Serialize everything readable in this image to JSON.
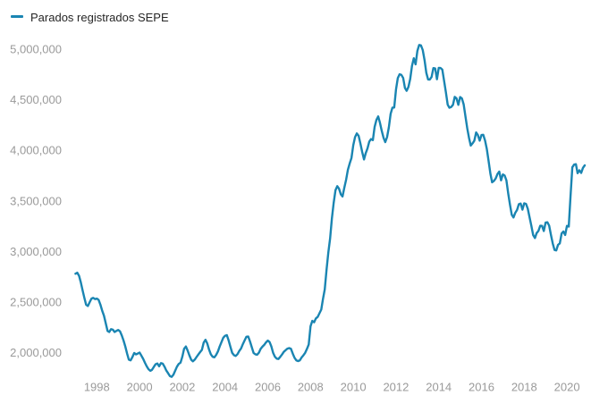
{
  "chart_data": {
    "type": "line",
    "title": "",
    "legend": "Parados registrados SEPE",
    "legend_position": "top-left",
    "grid": false,
    "x_tick_labels": [
      "1998",
      "2000",
      "2002",
      "2004",
      "2006",
      "2008",
      "2010",
      "2012",
      "2014",
      "2016",
      "2018",
      "2020"
    ],
    "x_tick_years": [
      1998,
      2000,
      2002,
      2004,
      2006,
      2008,
      2010,
      2012,
      2014,
      2016,
      2018,
      2020
    ],
    "y_tick_labels": [
      "2,000,000",
      "2,500,000",
      "3,000,000",
      "3,500,000",
      "4,000,000",
      "4,500,000",
      "5,000,000"
    ],
    "y_tick_values": [
      2000000,
      2500000,
      3000000,
      3500000,
      4000000,
      4500000,
      5000000
    ],
    "series": [
      {
        "name": "Parados registrados SEPE",
        "color": "#1a85b2",
        "frequency": "monthly",
        "start": "1997-01",
        "end": "2020-11",
        "values": [
          2780000,
          2791000,
          2760000,
          2695000,
          2615000,
          2540000,
          2475000,
          2462000,
          2500000,
          2535000,
          2542000,
          2530000,
          2535000,
          2522000,
          2475000,
          2415000,
          2365000,
          2290000,
          2215000,
          2205000,
          2233000,
          2228000,
          2205000,
          2216000,
          2225000,
          2212000,
          2170000,
          2120000,
          2060000,
          1990000,
          1932000,
          1925000,
          1958000,
          1997000,
          1984000,
          1992000,
          2002000,
          1972000,
          1940000,
          1901000,
          1866000,
          1838000,
          1822000,
          1831000,
          1860000,
          1886000,
          1894000,
          1866000,
          1898000,
          1892000,
          1862000,
          1824000,
          1798000,
          1770000,
          1762000,
          1782000,
          1822000,
          1862000,
          1890000,
          1902000,
          1960000,
          2040000,
          2062000,
          2020000,
          1972000,
          1930000,
          1915000,
          1932000,
          1958000,
          1982000,
          2006000,
          2028000,
          2100000,
          2128000,
          2092000,
          2032000,
          1985000,
          1960000,
          1955000,
          1978000,
          2012000,
          2062000,
          2105000,
          2148000,
          2168000,
          2174000,
          2122000,
          2058000,
          1998000,
          1976000,
          1968000,
          1986000,
          2018000,
          2042000,
          2085000,
          2122000,
          2158000,
          2161000,
          2112000,
          2055000,
          1998000,
          1985000,
          1981000,
          2000000,
          2038000,
          2060000,
          2078000,
          2102000,
          2120000,
          2106000,
          2062000,
          1998000,
          1960000,
          1942000,
          1938000,
          1959000,
          1982000,
          2009000,
          2025000,
          2041000,
          2046000,
          2039000,
          1992000,
          1951000,
          1925000,
          1918000,
          1924000,
          1953000,
          1974000,
          1999000,
          2038000,
          2082000,
          2261000,
          2315000,
          2301000,
          2339000,
          2354000,
          2390000,
          2426000,
          2530000,
          2625000,
          2818000,
          2989000,
          3129000,
          3327000,
          3481000,
          3605000,
          3645000,
          3620000,
          3564000,
          3544000,
          3630000,
          3709000,
          3808000,
          3869000,
          3924000,
          4049000,
          4130000,
          4166000,
          4142000,
          4066000,
          3982000,
          3909000,
          3970000,
          4018000,
          4086000,
          4110000,
          4100000,
          4231000,
          4299000,
          4334000,
          4269000,
          4190000,
          4122000,
          4080000,
          4130000,
          4226000,
          4360000,
          4420000,
          4422000,
          4600000,
          4712000,
          4750000,
          4744000,
          4714000,
          4615000,
          4587000,
          4626000,
          4705000,
          4834000,
          4908000,
          4848000,
          4981000,
          5040000,
          5035000,
          4989000,
          4891000,
          4764000,
          4699000,
          4698000,
          4724000,
          4811000,
          4808000,
          4701000,
          4814000,
          4812000,
          4796000,
          4684000,
          4572000,
          4450000,
          4420000,
          4427000,
          4448000,
          4527000,
          4512000,
          4448000,
          4525000,
          4512000,
          4452000,
          4333000,
          4215000,
          4120000,
          4046000,
          4068000,
          4094000,
          4176000,
          4149000,
          4094000,
          4150000,
          4153000,
          4095000,
          4011000,
          3891000,
          3767000,
          3683000,
          3697000,
          3721000,
          3765000,
          3789000,
          3703000,
          3761000,
          3750000,
          3702000,
          3573000,
          3461000,
          3362000,
          3336000,
          3382000,
          3410000,
          3467000,
          3474000,
          3413000,
          3476000,
          3470000,
          3422000,
          3336000,
          3252000,
          3162000,
          3132000,
          3182000,
          3203000,
          3254000,
          3253000,
          3202000,
          3285000,
          3289000,
          3255000,
          3163000,
          3079000,
          3015000,
          3011000,
          3065000,
          3080000,
          3177000,
          3198000,
          3163000,
          3253000,
          3246000,
          3548000,
          3831000,
          3858000,
          3862000,
          3773000,
          3802000,
          3776000,
          3826000,
          3851000
        ]
      }
    ]
  },
  "colors": {
    "line": "#1a85b2",
    "tick_label": "#9a9a9a",
    "legend_text": "#262626",
    "background": "#ffffff"
  }
}
